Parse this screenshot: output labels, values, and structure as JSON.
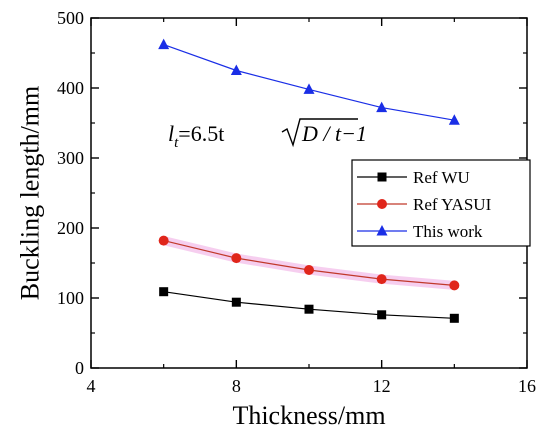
{
  "chart_data": {
    "type": "line",
    "xlabel": "Thickness/mm",
    "ylabel": "Buckling length/mm",
    "xlim": [
      4,
      16
    ],
    "ylim": [
      0,
      500
    ],
    "xticks": [
      "4",
      "8",
      "12",
      "16"
    ],
    "yticks": [
      "0",
      "100",
      "200",
      "300",
      "400",
      "500"
    ],
    "grid": false,
    "legend_position": "right",
    "annotation": {
      "l": "l",
      "sub": "t",
      "eq": "=6.5t",
      "radicand": "D / t−1"
    },
    "series": [
      {
        "name": "Ref WU",
        "color": "#000000",
        "marker": "square",
        "x": [
          6,
          8,
          10,
          12,
          14
        ],
        "y": [
          109,
          94,
          84,
          76,
          71
        ]
      },
      {
        "name": "Ref YASUI",
        "color": "#c0392b",
        "marker": "circle",
        "x": [
          6,
          8,
          10,
          12,
          14
        ],
        "y": [
          182,
          157,
          140,
          127,
          118
        ]
      },
      {
        "name": "This work",
        "color": "#1a2ee6",
        "marker": "triangle",
        "x": [
          6,
          8,
          10,
          12,
          14
        ],
        "y": [
          462,
          425,
          398,
          372,
          354
        ]
      }
    ]
  }
}
